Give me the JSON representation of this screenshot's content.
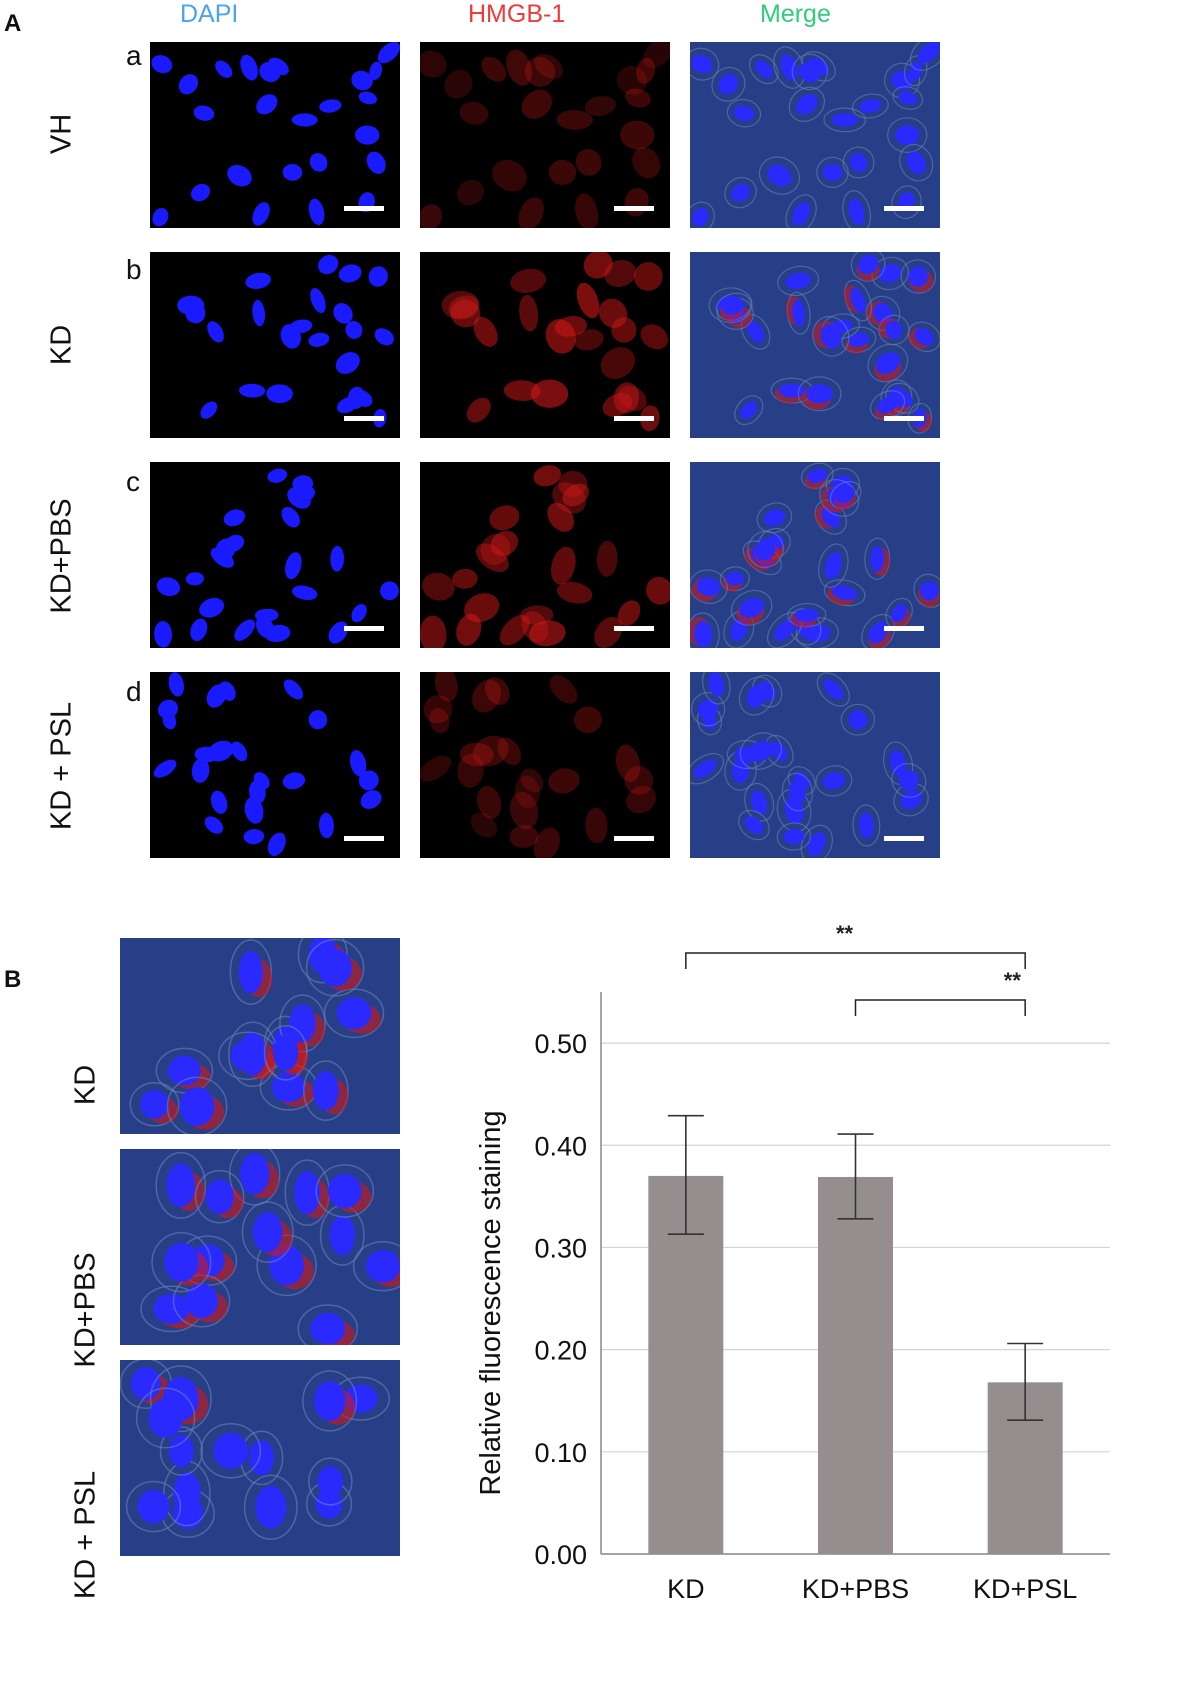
{
  "panel_a": {
    "letter": "A",
    "columns": [
      "DAPI",
      "HMGB-1",
      "Merge"
    ],
    "rows": [
      {
        "letter": "a",
        "label": "VH"
      },
      {
        "letter": "b",
        "label": "KD"
      },
      {
        "letter": "c",
        "label": "KD+PBS"
      },
      {
        "letter": "d",
        "label": "KD + PSL"
      }
    ]
  },
  "panel_b": {
    "letter": "B",
    "image_labels": [
      "KD",
      "KD+PBS",
      "KD + PSL"
    ]
  },
  "chart_data": {
    "type": "bar",
    "categories": [
      "KD",
      "KD+PBS",
      "KD+PSL"
    ],
    "values": [
      0.37,
      0.369,
      0.168
    ],
    "error_low": [
      0.313,
      0.328,
      0.131
    ],
    "error_high": [
      0.429,
      0.411,
      0.206
    ],
    "ylabel": "Relative fluorescence staining",
    "xlabel": "",
    "ylim": [
      0,
      0.55
    ],
    "yticks": [
      "0.00",
      "0.10",
      "0.20",
      "0.30",
      "0.40",
      "0.50"
    ],
    "grid": true,
    "bar_color": "#948f8e",
    "significance": [
      {
        "from": "KD",
        "to": "KD+PSL",
        "label": "**"
      },
      {
        "from": "KD+PBS",
        "to": "KD+PSL",
        "label": "**"
      }
    ]
  },
  "colors": {
    "dapi_label": "#4aa3ef",
    "hmgb_label": "#ee3a3a",
    "merge_label": "#2fcc7b",
    "nucleus": "#1a1aff",
    "hmgb_stain": "#d01818",
    "merge_background": "#273f86"
  }
}
